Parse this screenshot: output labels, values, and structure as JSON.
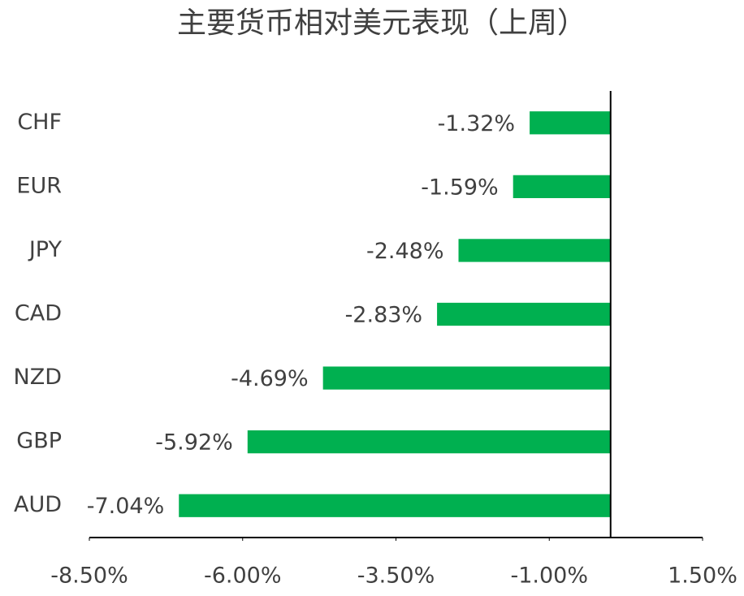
{
  "chart_data": {
    "type": "bar",
    "orientation": "horizontal",
    "title": "主要货币相对美元表现（上周）",
    "categories": [
      "CHF",
      "EUR",
      "JPY",
      "CAD",
      "NZD",
      "GBP",
      "AUD"
    ],
    "values": [
      -1.32,
      -1.59,
      -2.48,
      -2.83,
      -4.69,
      -5.92,
      -7.04
    ],
    "value_labels": [
      "-1.32%",
      "-1.59%",
      "-2.48%",
      "-2.83%",
      "-4.69%",
      "-5.92%",
      "-7.04%"
    ],
    "color": "#00b050",
    "xlim": [
      -8.5,
      1.5
    ],
    "xticks": [
      {
        "value": -8.5,
        "label": "-8.50%"
      },
      {
        "value": -6,
        "label": "-6.00%"
      },
      {
        "value": -3.5,
        "label": "-3.50%"
      },
      {
        "value": -1,
        "label": "-1.00%"
      },
      {
        "value": 1.5,
        "label": "1.50%"
      }
    ],
    "grid": false
  }
}
